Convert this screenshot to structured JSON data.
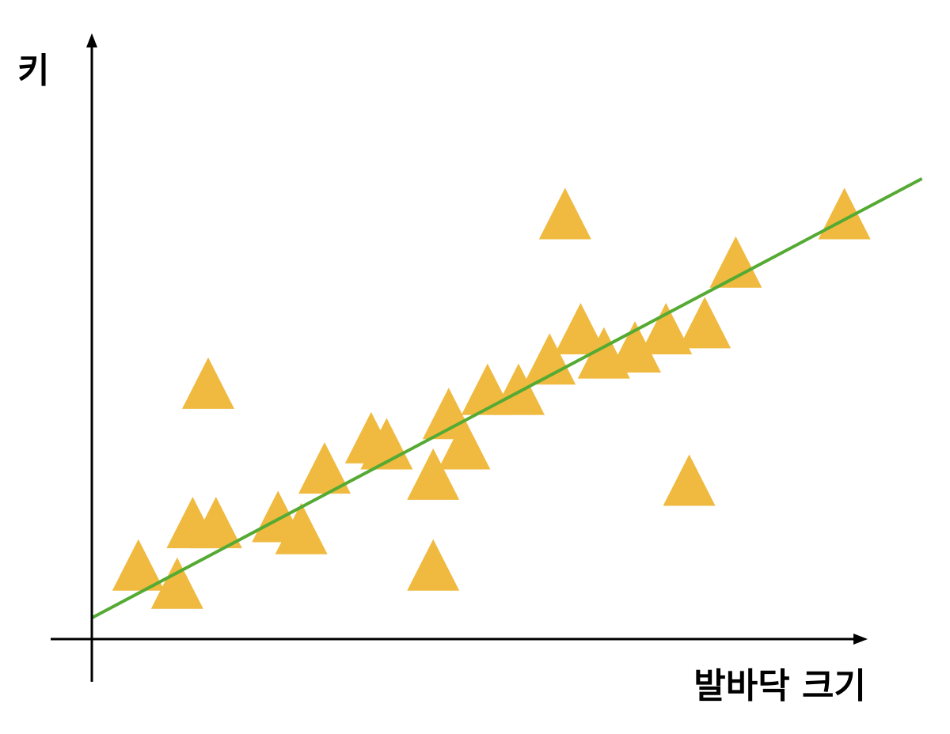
{
  "chart_data": {
    "type": "scatter",
    "title": "",
    "xlabel": "발바닥 크기",
    "ylabel": "키",
    "grid": false,
    "legend": "none",
    "x_ticks": [],
    "y_ticks": [],
    "marker": "triangle",
    "colors": {
      "points": "#EFBA3F",
      "trend_line": "#55AA33",
      "axes": "#000000",
      "background": "#FFFFFF"
    },
    "xlim": [
      0,
      10
    ],
    "ylim": [
      0,
      10
    ],
    "series": [
      {
        "values": [
          {
            "x": 0.6,
            "y": 0.8
          },
          {
            "x": 1.1,
            "y": 0.5
          },
          {
            "x": 1.3,
            "y": 1.5
          },
          {
            "x": 1.6,
            "y": 1.5
          },
          {
            "x": 1.5,
            "y": 3.8
          },
          {
            "x": 2.4,
            "y": 1.6
          },
          {
            "x": 2.7,
            "y": 1.4
          },
          {
            "x": 3.0,
            "y": 2.4
          },
          {
            "x": 3.6,
            "y": 2.9
          },
          {
            "x": 3.8,
            "y": 2.8
          },
          {
            "x": 4.4,
            "y": 2.3
          },
          {
            "x": 4.6,
            "y": 3.3
          },
          {
            "x": 4.8,
            "y": 2.8
          },
          {
            "x": 4.4,
            "y": 0.8
          },
          {
            "x": 5.1,
            "y": 3.7
          },
          {
            "x": 5.5,
            "y": 3.7
          },
          {
            "x": 5.9,
            "y": 4.2
          },
          {
            "x": 6.1,
            "y": 6.6
          },
          {
            "x": 6.3,
            "y": 4.7
          },
          {
            "x": 6.6,
            "y": 4.3
          },
          {
            "x": 7.0,
            "y": 4.4
          },
          {
            "x": 7.4,
            "y": 4.7
          },
          {
            "x": 7.9,
            "y": 4.8
          },
          {
            "x": 8.3,
            "y": 5.8
          },
          {
            "x": 7.7,
            "y": 2.2
          },
          {
            "x": 9.7,
            "y": 6.6
          }
        ]
      }
    ],
    "trend_line": {
      "type": "linear",
      "x0": 0,
      "y0": 0.35,
      "x1": 10.7,
      "y1": 7.6
    }
  }
}
